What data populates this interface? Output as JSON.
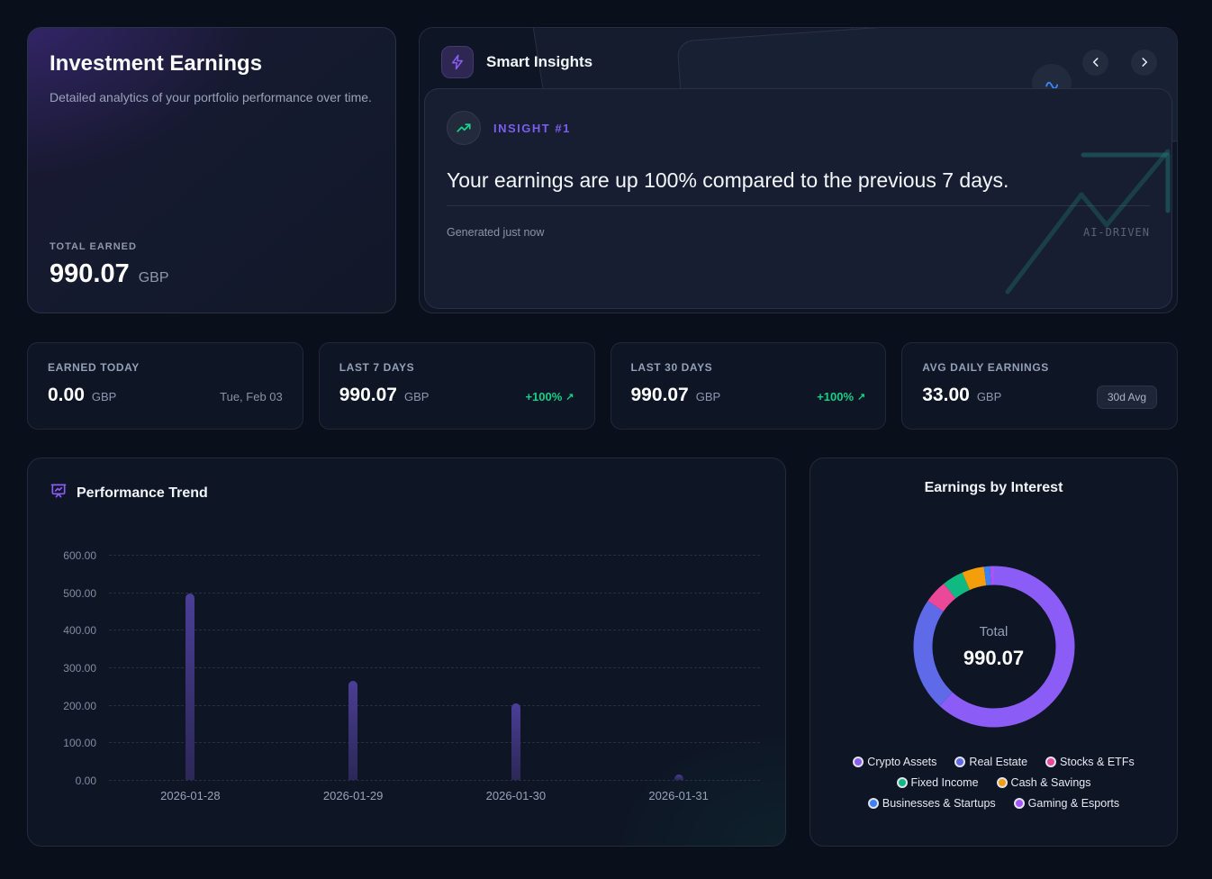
{
  "hero": {
    "title": "Investment Earnings",
    "subtitle": "Detailed analytics of your portfolio performance over time.",
    "total_label": "TOTAL EARNED",
    "total_value": "990.07",
    "currency": "GBP"
  },
  "insights": {
    "header": "Smart Insights",
    "badge": "INSIGHT #1",
    "headline": "Your earnings are up 100% compared to the previous 7 days.",
    "generated": "Generated just now",
    "tag": "AI-DRIVEN"
  },
  "stats": [
    {
      "label": "EARNED TODAY",
      "value": "0.00",
      "currency": "GBP",
      "extra": "Tue, Feb 03",
      "extra_type": "date"
    },
    {
      "label": "LAST 7 DAYS",
      "value": "990.07",
      "currency": "GBP",
      "extra": "+100%",
      "extra_type": "percent"
    },
    {
      "label": "LAST 30 DAYS",
      "value": "990.07",
      "currency": "GBP",
      "extra": "+100%",
      "extra_type": "percent"
    },
    {
      "label": "AVG DAILY EARNINGS",
      "value": "33.00",
      "currency": "GBP",
      "extra": "30d Avg",
      "extra_type": "pill"
    }
  ],
  "performance": {
    "title": "Performance Trend",
    "chart_data": {
      "type": "bar",
      "categories": [
        "2026-01-28",
        "2026-01-29",
        "2026-01-30",
        "2026-01-31"
      ],
      "values": [
        498,
        265,
        203,
        15
      ],
      "title": "Performance Trend",
      "xlabel": "",
      "ylabel": "",
      "ylim": [
        0,
        600
      ],
      "ytick_labels": [
        "600.00",
        "500.00",
        "400.00",
        "300.00",
        "200.00",
        "100.00",
        "0.00"
      ],
      "grid": "dashed horizontal",
      "bar_color": "#4b3e97"
    }
  },
  "donut": {
    "title": "Earnings by Interest",
    "center_label": "Total",
    "center_value": "990.07",
    "chart_data": {
      "type": "pie",
      "title": "Earnings by Interest",
      "total": 990.07,
      "legend_position": "bottom",
      "segments": [
        {
          "label": "Crypto Assets",
          "value": 612,
          "color": "#8b5cf6"
        },
        {
          "label": "Real Estate",
          "value": 226,
          "color": "#5f6ae8"
        },
        {
          "label": "Stocks & ETFs",
          "value": 46,
          "color": "#ec4899"
        },
        {
          "label": "Fixed Income",
          "value": 42,
          "color": "#10b981"
        },
        {
          "label": "Cash & Savings",
          "value": 44,
          "color": "#f59e0b"
        },
        {
          "label": "Businesses & Startups",
          "value": 12,
          "color": "#3b82f6"
        },
        {
          "label": "Gaming & Esports",
          "value": 8,
          "color": "#a855f7"
        }
      ]
    }
  },
  "colors": {
    "accent_purple": "#8b5cf6",
    "positive_green": "#17d088",
    "bar_indigo": "#4b3e97"
  }
}
